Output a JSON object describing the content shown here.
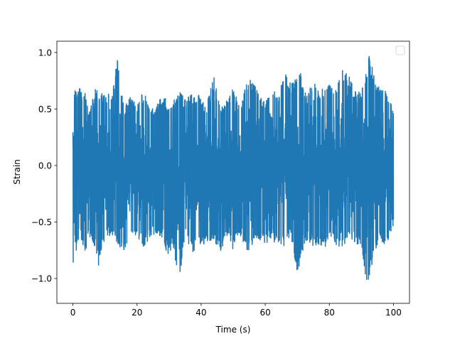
{
  "chart_data": {
    "type": "line",
    "title": "",
    "xlabel": "Time (s)",
    "ylabel": "Strain",
    "xlim": [
      -5,
      105
    ],
    "ylim": [
      -1.22,
      1.1
    ],
    "xticks": [
      0,
      20,
      40,
      60,
      80,
      100
    ],
    "xtick_labels": [
      "0",
      "20",
      "40",
      "60",
      "80",
      "100"
    ],
    "yticks": [
      -1.0,
      -0.5,
      0.0,
      0.5,
      1.0
    ],
    "ytick_labels": [
      "−1.0",
      "−0.5",
      "0.0",
      "0.5",
      "1.0"
    ],
    "grid": false,
    "legend": {
      "placement": "top-right",
      "entries": []
    },
    "series": [
      {
        "color": "#1f77b4",
        "x_range": [
          0,
          100
        ],
        "envelope": {
          "x": [
            0,
            0.5,
            1,
            2,
            4,
            5,
            7,
            8,
            10,
            12,
            14,
            15,
            16,
            18,
            20,
            22,
            24,
            26,
            28,
            30,
            31,
            33,
            35,
            37,
            40,
            42,
            44,
            46,
            48,
            50,
            52,
            55,
            57,
            59,
            60,
            62,
            64,
            66,
            68,
            70,
            71,
            73,
            75,
            77,
            79,
            80,
            82,
            84,
            86,
            88,
            90,
            92,
            92.5,
            94,
            96,
            98,
            100
          ],
          "upper": [
            0.98,
            0.65,
            0.7,
            0.68,
            0.67,
            0.45,
            0.72,
            0.62,
            0.66,
            0.63,
            0.97,
            0.67,
            0.52,
            0.62,
            0.55,
            0.66,
            0.53,
            0.52,
            0.65,
            0.52,
            0.55,
            0.68,
            0.58,
            0.63,
            0.62,
            0.58,
            0.79,
            0.5,
            0.58,
            0.69,
            0.52,
            0.81,
            0.7,
            0.6,
            0.55,
            0.68,
            0.62,
            0.82,
            0.73,
            0.78,
            0.82,
            0.63,
            0.75,
            0.65,
            0.72,
            0.73,
            0.68,
            0.88,
            0.8,
            0.66,
            0.65,
            0.95,
            1.0,
            0.79,
            0.68,
            0.65,
            0.48
          ],
          "lower": [
            -0.95,
            -0.62,
            -0.77,
            -0.62,
            -0.79,
            -0.65,
            -0.72,
            -0.9,
            -0.65,
            -0.61,
            -0.71,
            -0.77,
            -0.75,
            -0.6,
            -0.62,
            -0.72,
            -0.65,
            -0.6,
            -0.66,
            -0.84,
            -0.67,
            -1.06,
            -0.62,
            -0.78,
            -0.71,
            -0.68,
            -0.65,
            -0.79,
            -0.62,
            -0.75,
            -0.61,
            -0.79,
            -0.71,
            -0.65,
            -0.7,
            -0.66,
            -0.72,
            -0.71,
            -0.62,
            -0.99,
            -0.82,
            -0.66,
            -0.72,
            -0.7,
            -0.73,
            -0.63,
            -0.7,
            -0.76,
            -0.62,
            -0.68,
            -0.73,
            -1.12,
            -1.0,
            -0.77,
            -0.66,
            -0.72,
            -0.52
          ]
        }
      }
    ]
  }
}
